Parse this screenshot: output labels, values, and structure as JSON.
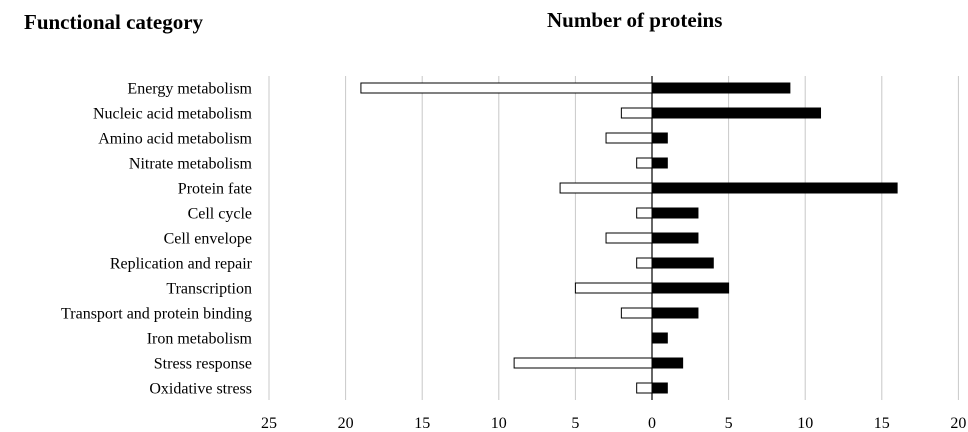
{
  "headings": {
    "left": "Functional category",
    "right": "Number of proteins"
  },
  "chart_data": {
    "type": "bar",
    "orientation": "horizontal",
    "categories": [
      "Energy metabolism",
      "Nucleic acid metabolism",
      "Amino acid metabolism",
      "Nitrate metabolism",
      "Protein fate",
      "Cell cycle",
      "Cell envelope",
      "Replication and repair",
      "Transcription",
      "Transport and protein binding",
      "Iron metabolism",
      "Stress response",
      "Oxidative stress"
    ],
    "series": [
      {
        "fill": "#ffffff",
        "stroke": "#000000",
        "direction": "left",
        "values": [
          19,
          2,
          3,
          1,
          6,
          1,
          3,
          1,
          5,
          2,
          0,
          9,
          1
        ]
      },
      {
        "fill": "#000000",
        "stroke": "#000000",
        "direction": "right",
        "values": [
          9,
          11,
          1,
          1,
          16,
          3,
          3,
          4,
          5,
          3,
          1,
          2,
          1
        ]
      }
    ],
    "xlim": [
      -25,
      20
    ],
    "xticks": [
      "25",
      "20",
      "15",
      "10",
      "5",
      "0",
      "5",
      "10",
      "15",
      "20"
    ],
    "grid": true
  },
  "colors": {
    "grid": "#c8c8c8",
    "axis": "#000000"
  }
}
